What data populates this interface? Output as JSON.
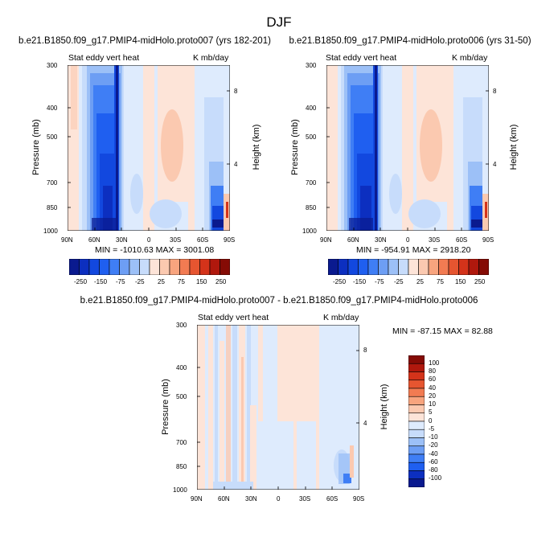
{
  "main_title": "DJF",
  "colors": {
    "blue": [
      "#0a1a8f",
      "#0c2fc0",
      "#1248df",
      "#1f5ff0",
      "#3f7ef5",
      "#6d9ef4",
      "#9cc0f7",
      "#c7dcfb",
      "#deebfd"
    ],
    "red": [
      "#fde4d8",
      "#fbc9b0",
      "#f8a47e",
      "#f27b52",
      "#e65530",
      "#d4331a",
      "#b0180d",
      "#850b05"
    ],
    "white": "#ffffff"
  },
  "chart_data": [
    {
      "type": "heatmap",
      "title": "b.e21.B1850.f09_g17.PMIP4-midHolo.proto007 (yrs 182-201)",
      "left_label": "Stat eddy vert heat",
      "right_label": "K mb/day",
      "ylabel": "Pressure (mb)",
      "ylabel_right": "Height (km)",
      "x_ticks": [
        "90N",
        "60N",
        "30N",
        "0",
        "30S",
        "60S",
        "90S"
      ],
      "y_ticks": [
        "300",
        "400",
        "500",
        "700",
        "850",
        "1000"
      ],
      "y_ticks_right": [
        "8",
        "4"
      ],
      "min_max": "MIN = -1010.63   MAX = 3001.08",
      "colorbar_labels": [
        "-250",
        "-150",
        "-75",
        "-25",
        "25",
        "75",
        "150",
        "250"
      ]
    },
    {
      "type": "heatmap",
      "title": "b.e21.B1850.f09_g17.PMIP4-midHolo.proto006 (yrs 31-50)",
      "left_label": "Stat eddy vert heat",
      "right_label": "K mb/day",
      "ylabel": "Pressure (mb)",
      "ylabel_right": "Height (km)",
      "x_ticks": [
        "90N",
        "60N",
        "30N",
        "0",
        "30S",
        "60S",
        "90S"
      ],
      "y_ticks": [
        "300",
        "400",
        "500",
        "700",
        "850",
        "1000"
      ],
      "y_ticks_right": [
        "8",
        "4"
      ],
      "min_max": "MIN = -954.91   MAX = 2918.20",
      "colorbar_labels": [
        "-250",
        "-150",
        "-75",
        "-25",
        "25",
        "75",
        "150",
        "250"
      ]
    },
    {
      "type": "heatmap",
      "title": "b.e21.B1850.f09_g17.PMIP4-midHolo.proto007 - b.e21.B1850.f09_g17.PMIP4-midHolo.proto006",
      "left_label": "Stat eddy vert heat",
      "right_label": "K mb/day",
      "ylabel": "Pressure (mb)",
      "ylabel_right": "Height (km)",
      "x_ticks": [
        "90N",
        "60N",
        "30N",
        "0",
        "30S",
        "60S",
        "90S"
      ],
      "y_ticks": [
        "300",
        "400",
        "500",
        "700",
        "850",
        "1000"
      ],
      "y_ticks_right": [
        "8",
        "4"
      ],
      "min_max": "MIN = -87.15   MAX =  82.88",
      "colorbar_labels": [
        "100",
        "80",
        "60",
        "40",
        "20",
        "10",
        "5",
        "0",
        "-5",
        "-10",
        "-20",
        "-40",
        "-60",
        "-80",
        "-100"
      ]
    }
  ]
}
